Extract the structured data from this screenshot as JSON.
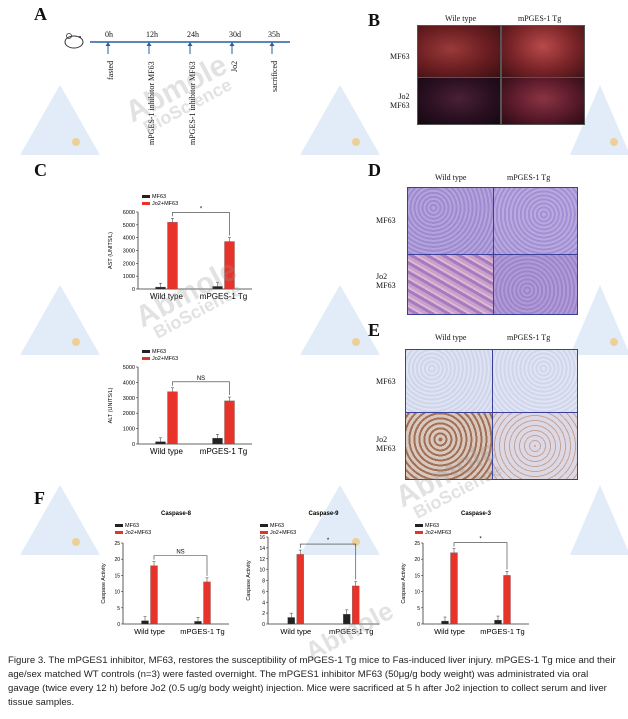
{
  "panel_labels": {
    "a": "A",
    "b": "B",
    "c": "C",
    "d": "D",
    "e": "E",
    "f": "F"
  },
  "watermark": {
    "line1": "Abmole",
    "line2": "BioScience"
  },
  "timeline": {
    "ticks": [
      "0h",
      "12h",
      "24h",
      "30d",
      "35h"
    ],
    "events": [
      "fasted",
      "mPGES-1 inhibitor MF63",
      "mPGES-1 inhibitor MF63",
      "Jo2",
      "sacrificed"
    ]
  },
  "panel_b": {
    "columns": [
      "Wile type",
      "mPGES-1 Tg"
    ],
    "rows": [
      "MF63",
      "Jo2\nMF63"
    ]
  },
  "panel_d": {
    "columns": [
      "Wild type",
      "mPGES-1 Tg"
    ],
    "rows": [
      "MF63",
      "Jo2\nMF63"
    ]
  },
  "panel_e": {
    "columns": [
      "Wild type",
      "mPGES-1 Tg"
    ],
    "rows": [
      "MF63",
      "Jo2\nMF63"
    ]
  },
  "colors": {
    "mf63": "#222222",
    "jo2": "#e8332a",
    "hist_d": "#a79ad6",
    "hist_e": "#d7dcef",
    "axis": "#4a6fa0"
  },
  "chart_data": [
    {
      "type": "bar",
      "title": "",
      "ylabel": "AST (UNITS/L)",
      "ylim": [
        0,
        6000
      ],
      "yticks": [
        0,
        1000,
        2000,
        3000,
        4000,
        5000,
        6000
      ],
      "categories": [
        "Wild type",
        "mPGES-1 Tg"
      ],
      "series": [
        {
          "name": "MF63",
          "values": [
            150,
            200
          ]
        },
        {
          "name": "Jo2+MF63",
          "values": [
            5200,
            3700
          ]
        }
      ],
      "significance": "*",
      "legend": "top-left"
    },
    {
      "type": "bar",
      "title": "",
      "ylabel": "ALT (UNITS/L)",
      "ylim": [
        0,
        5000
      ],
      "yticks": [
        0,
        1000,
        2000,
        3000,
        4000,
        5000
      ],
      "categories": [
        "Wild type",
        "mPGES-1 Tg"
      ],
      "series": [
        {
          "name": "MF63",
          "values": [
            150,
            380
          ]
        },
        {
          "name": "Jo2+MF63",
          "values": [
            3400,
            2800
          ]
        }
      ],
      "significance": "NS",
      "legend": "top-left"
    },
    {
      "type": "bar",
      "title": "Caspase-8",
      "ylabel": "Caspase Activity",
      "ylim": [
        0,
        25
      ],
      "yticks": [
        0,
        5,
        10,
        15,
        20,
        25
      ],
      "categories": [
        "Wild type",
        "mPGES-1 Tg"
      ],
      "series": [
        {
          "name": "MF63",
          "values": [
            1.0,
            0.8
          ]
        },
        {
          "name": "Jo2+MF63",
          "values": [
            18,
            13
          ]
        }
      ],
      "significance": "NS",
      "legend": "top-left"
    },
    {
      "type": "bar",
      "title": "Caspase-9",
      "ylabel": "Caspase Activity",
      "ylim": [
        0,
        16
      ],
      "yticks": [
        0,
        2,
        4,
        6,
        8,
        10,
        12,
        14,
        16
      ],
      "categories": [
        "Wild type",
        "mPGES-1 Tg"
      ],
      "series": [
        {
          "name": "MF63",
          "values": [
            1.2,
            1.8
          ]
        },
        {
          "name": "Jo2+MF63",
          "values": [
            12.8,
            7.0
          ]
        }
      ],
      "significance": "*",
      "legend": "top-left"
    },
    {
      "type": "bar",
      "title": "Caspase-3",
      "ylabel": "Caspase Activity",
      "ylim": [
        0,
        25
      ],
      "yticks": [
        0,
        5,
        10,
        15,
        20,
        25
      ],
      "categories": [
        "Wild type",
        "mPGES-1 Tg"
      ],
      "series": [
        {
          "name": "MF63",
          "values": [
            0.9,
            1.2
          ]
        },
        {
          "name": "Jo2+MF63",
          "values": [
            22,
            15
          ]
        }
      ],
      "significance": "*",
      "legend": "top-left"
    }
  ],
  "caption": "Figure 3. The mPGES1 inhibitor, MF63, restores the susceptibility of mPGES-1 Tg mice to Fas-induced liver injury. mPGES-1 Tg mice and their age/sex matched WT controls (n=3) were fasted overnight. The mPGES1 inhibitor MF63 (50μg/g body weight) was administrated via oral gavage (twice every 12 h) before Jo2 (0.5 ug/g body weight) injection. Mice were sacrificed at 5 h after Jo2 injection to collect serum and liver tissue samples."
}
